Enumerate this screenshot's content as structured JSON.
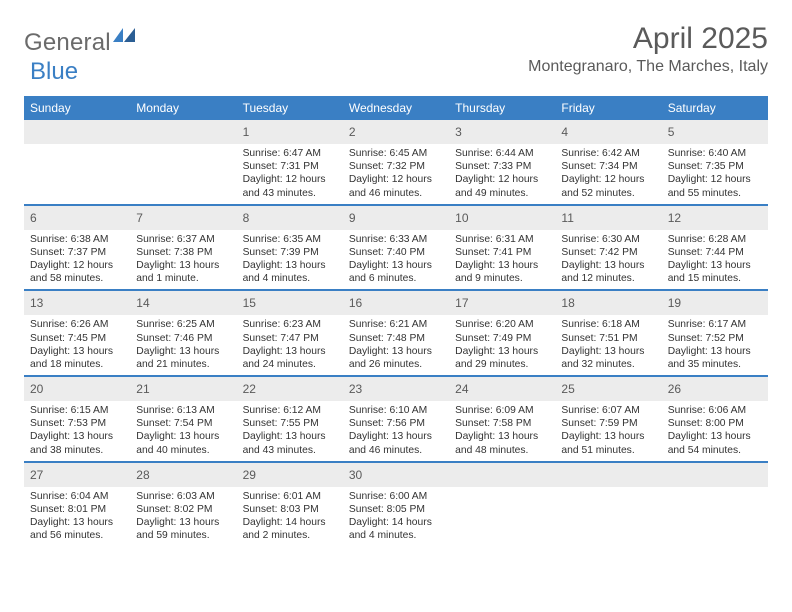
{
  "brand": {
    "word1": "General",
    "word2": "Blue"
  },
  "title": "April 2025",
  "location": "Montegranaro, The Marches, Italy",
  "colors": {
    "header_bg": "#3a7fc4",
    "daynum_bg": "#ececec",
    "text": "#333333",
    "title_text": "#5a5a5a",
    "page_bg": "#ffffff"
  },
  "dayNames": [
    "Sunday",
    "Monday",
    "Tuesday",
    "Wednesday",
    "Thursday",
    "Friday",
    "Saturday"
  ],
  "weeks": [
    [
      null,
      null,
      {
        "n": "1",
        "sr": "6:47 AM",
        "ss": "7:31 PM",
        "dl": "12 hours and 43 minutes."
      },
      {
        "n": "2",
        "sr": "6:45 AM",
        "ss": "7:32 PM",
        "dl": "12 hours and 46 minutes."
      },
      {
        "n": "3",
        "sr": "6:44 AM",
        "ss": "7:33 PM",
        "dl": "12 hours and 49 minutes."
      },
      {
        "n": "4",
        "sr": "6:42 AM",
        "ss": "7:34 PM",
        "dl": "12 hours and 52 minutes."
      },
      {
        "n": "5",
        "sr": "6:40 AM",
        "ss": "7:35 PM",
        "dl": "12 hours and 55 minutes."
      }
    ],
    [
      {
        "n": "6",
        "sr": "6:38 AM",
        "ss": "7:37 PM",
        "dl": "12 hours and 58 minutes."
      },
      {
        "n": "7",
        "sr": "6:37 AM",
        "ss": "7:38 PM",
        "dl": "13 hours and 1 minute."
      },
      {
        "n": "8",
        "sr": "6:35 AM",
        "ss": "7:39 PM",
        "dl": "13 hours and 4 minutes."
      },
      {
        "n": "9",
        "sr": "6:33 AM",
        "ss": "7:40 PM",
        "dl": "13 hours and 6 minutes."
      },
      {
        "n": "10",
        "sr": "6:31 AM",
        "ss": "7:41 PM",
        "dl": "13 hours and 9 minutes."
      },
      {
        "n": "11",
        "sr": "6:30 AM",
        "ss": "7:42 PM",
        "dl": "13 hours and 12 minutes."
      },
      {
        "n": "12",
        "sr": "6:28 AM",
        "ss": "7:44 PM",
        "dl": "13 hours and 15 minutes."
      }
    ],
    [
      {
        "n": "13",
        "sr": "6:26 AM",
        "ss": "7:45 PM",
        "dl": "13 hours and 18 minutes."
      },
      {
        "n": "14",
        "sr": "6:25 AM",
        "ss": "7:46 PM",
        "dl": "13 hours and 21 minutes."
      },
      {
        "n": "15",
        "sr": "6:23 AM",
        "ss": "7:47 PM",
        "dl": "13 hours and 24 minutes."
      },
      {
        "n": "16",
        "sr": "6:21 AM",
        "ss": "7:48 PM",
        "dl": "13 hours and 26 minutes."
      },
      {
        "n": "17",
        "sr": "6:20 AM",
        "ss": "7:49 PM",
        "dl": "13 hours and 29 minutes."
      },
      {
        "n": "18",
        "sr": "6:18 AM",
        "ss": "7:51 PM",
        "dl": "13 hours and 32 minutes."
      },
      {
        "n": "19",
        "sr": "6:17 AM",
        "ss": "7:52 PM",
        "dl": "13 hours and 35 minutes."
      }
    ],
    [
      {
        "n": "20",
        "sr": "6:15 AM",
        "ss": "7:53 PM",
        "dl": "13 hours and 38 minutes."
      },
      {
        "n": "21",
        "sr": "6:13 AM",
        "ss": "7:54 PM",
        "dl": "13 hours and 40 minutes."
      },
      {
        "n": "22",
        "sr": "6:12 AM",
        "ss": "7:55 PM",
        "dl": "13 hours and 43 minutes."
      },
      {
        "n": "23",
        "sr": "6:10 AM",
        "ss": "7:56 PM",
        "dl": "13 hours and 46 minutes."
      },
      {
        "n": "24",
        "sr": "6:09 AM",
        "ss": "7:58 PM",
        "dl": "13 hours and 48 minutes."
      },
      {
        "n": "25",
        "sr": "6:07 AM",
        "ss": "7:59 PM",
        "dl": "13 hours and 51 minutes."
      },
      {
        "n": "26",
        "sr": "6:06 AM",
        "ss": "8:00 PM",
        "dl": "13 hours and 54 minutes."
      }
    ],
    [
      {
        "n": "27",
        "sr": "6:04 AM",
        "ss": "8:01 PM",
        "dl": "13 hours and 56 minutes."
      },
      {
        "n": "28",
        "sr": "6:03 AM",
        "ss": "8:02 PM",
        "dl": "13 hours and 59 minutes."
      },
      {
        "n": "29",
        "sr": "6:01 AM",
        "ss": "8:03 PM",
        "dl": "14 hours and 2 minutes."
      },
      {
        "n": "30",
        "sr": "6:00 AM",
        "ss": "8:05 PM",
        "dl": "14 hours and 4 minutes."
      },
      null,
      null,
      null
    ]
  ],
  "labels": {
    "sunrise": "Sunrise:",
    "sunset": "Sunset:",
    "daylight": "Daylight:"
  }
}
